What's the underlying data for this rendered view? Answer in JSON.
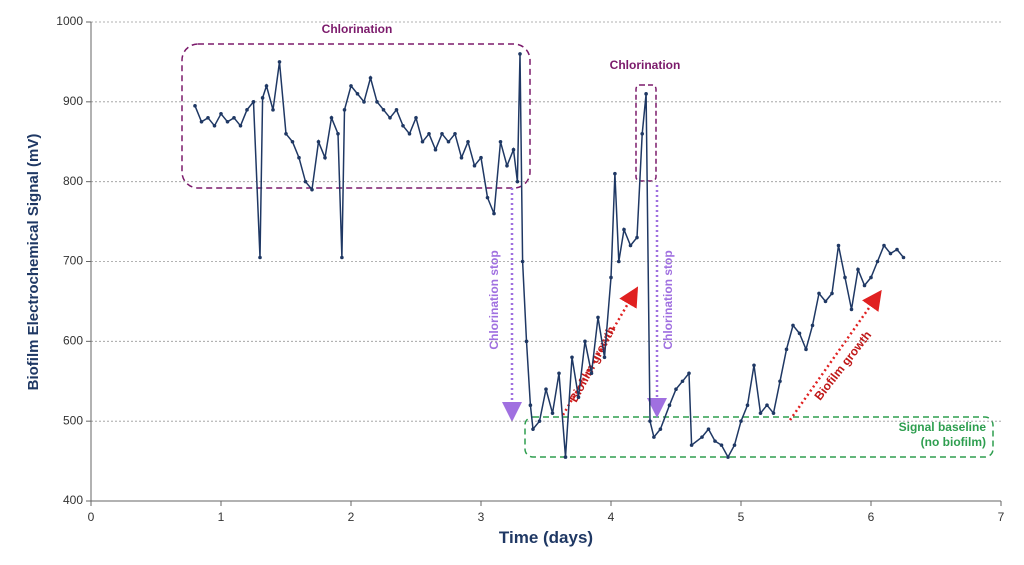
{
  "chart_data": {
    "type": "line",
    "xlabel": "Time (days)",
    "ylabel": "Biofilm Electrochemical Signal (mV)",
    "xlim": [
      0,
      7
    ],
    "xticks": [
      0,
      1,
      2,
      3,
      4,
      5,
      6,
      7
    ],
    "ylim": [
      400,
      1000
    ],
    "yticks": [
      400,
      500,
      600,
      700,
      800,
      900,
      1000
    ],
    "grid": true,
    "color": "#1f3864",
    "annotations": [
      "Chlorination",
      "Chlorination",
      "Chlorination stop",
      "Chlorination stop",
      "Biofilm growth",
      "Biofilm growth",
      "Signal baseline",
      "(no biofilm)"
    ],
    "x": [
      0.8,
      0.85,
      0.9,
      0.95,
      1.0,
      1.05,
      1.1,
      1.15,
      1.2,
      1.25,
      1.3,
      1.32,
      1.35,
      1.4,
      1.45,
      1.5,
      1.55,
      1.6,
      1.65,
      1.7,
      1.75,
      1.8,
      1.85,
      1.9,
      1.93,
      1.95,
      2.0,
      2.05,
      2.1,
      2.15,
      2.2,
      2.25,
      2.3,
      2.35,
      2.4,
      2.45,
      2.5,
      2.55,
      2.6,
      2.65,
      2.7,
      2.75,
      2.8,
      2.85,
      2.9,
      2.95,
      3.0,
      3.05,
      3.1,
      3.15,
      3.2,
      3.25,
      3.28,
      3.3,
      3.32,
      3.35,
      3.38,
      3.4,
      3.45,
      3.5,
      3.55,
      3.6,
      3.65,
      3.7,
      3.75,
      3.8,
      3.85,
      3.9,
      3.95,
      4.0,
      4.03,
      4.06,
      4.1,
      4.15,
      4.2,
      4.24,
      4.27,
      4.3,
      4.33,
      4.38,
      4.45,
      4.5,
      4.55,
      4.6,
      4.62,
      4.7,
      4.75,
      4.8,
      4.85,
      4.9,
      4.95,
      5.0,
      5.05,
      5.1,
      5.15,
      5.2,
      5.25,
      5.3,
      5.35,
      5.4,
      5.45,
      5.5,
      5.55,
      5.6,
      5.65,
      5.7,
      5.75,
      5.8,
      5.85,
      5.9,
      5.95,
      6.0,
      6.05,
      6.1,
      6.15,
      6.2,
      6.25
    ],
    "values": [
      895,
      875,
      880,
      870,
      885,
      875,
      880,
      870,
      890,
      900,
      705,
      905,
      920,
      890,
      950,
      860,
      850,
      830,
      800,
      790,
      850,
      830,
      880,
      860,
      705,
      890,
      920,
      910,
      900,
      930,
      900,
      890,
      880,
      890,
      870,
      860,
      880,
      850,
      860,
      840,
      860,
      850,
      860,
      830,
      850,
      820,
      830,
      780,
      760,
      850,
      820,
      840,
      800,
      960,
      700,
      600,
      520,
      490,
      500,
      540,
      510,
      560,
      455,
      580,
      530,
      600,
      560,
      630,
      580,
      680,
      810,
      700,
      740,
      720,
      730,
      860,
      910,
      500,
      480,
      490,
      520,
      540,
      550,
      560,
      470,
      480,
      490,
      475,
      470,
      455,
      470,
      500,
      520,
      570,
      510,
      520,
      510,
      550,
      590,
      620,
      610,
      590,
      620,
      660,
      650,
      660,
      720,
      680,
      640,
      690,
      670,
      680,
      700,
      720,
      710,
      715,
      705
    ]
  }
}
